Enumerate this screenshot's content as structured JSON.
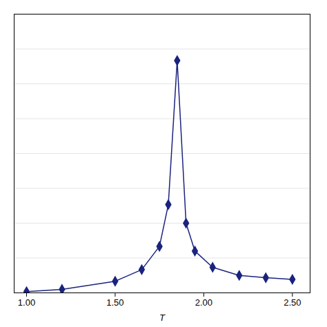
{
  "chart_data": {
    "type": "line",
    "x": [
      1.0,
      1.2,
      1.5,
      1.65,
      1.75,
      1.8,
      1.85,
      1.9,
      1.95,
      2.05,
      2.2,
      2.35,
      2.5
    ],
    "values": [
      0.5,
      1.5,
      5.0,
      10.0,
      20.0,
      38.0,
      100.0,
      30.0,
      18.0,
      11.0,
      7.5,
      6.5,
      5.8
    ],
    "color": "#1a237e",
    "marker": "diamond",
    "xlabel": "T",
    "xlim": [
      0.93,
      2.6
    ],
    "ylim": [
      0,
      120
    ],
    "xticks": [
      {
        "value": 1.0,
        "label": "1.00"
      },
      {
        "value": 1.5,
        "label": "1.50"
      },
      {
        "value": 2.0,
        "label": "2.00"
      },
      {
        "value": 2.5,
        "label": "2.50"
      }
    ],
    "yticks": [
      0,
      15,
      30,
      45,
      60,
      75,
      90,
      105,
      120
    ],
    "grid": true,
    "tick_labels": "x"
  }
}
